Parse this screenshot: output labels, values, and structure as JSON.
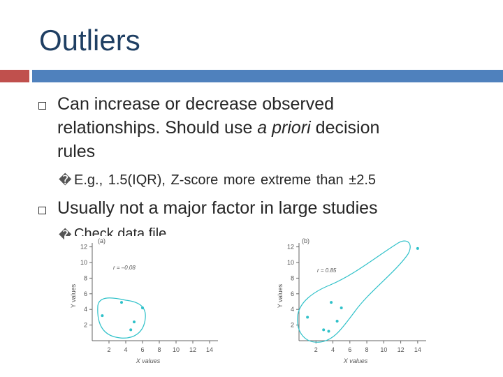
{
  "slide": {
    "title": "Outliers",
    "bullet1": {
      "line1": "Can increase or decrease observed",
      "line2_pre": "relationships. Should use ",
      "line2_italic": "a priori",
      "line2_post": " decision",
      "line3": "rules"
    },
    "sub1": {
      "marker": "�",
      "text": "E.g., 1.5(IQR), Z-score more extreme than ±2.5"
    },
    "bullet2": {
      "text": "Usually not a major factor in large studies"
    },
    "sub2": {
      "marker": "�",
      "text": "Check data file"
    }
  },
  "colors": {
    "title": "#1f3f63",
    "accent_red": "#c0504d",
    "accent_blue": "#4f81bd",
    "points": "#2fc1c9"
  },
  "chart_data": [
    {
      "type": "scatter",
      "panel_label": "(a)",
      "annotation": "r = –0.08",
      "xlabel": "X values",
      "ylabel": "Y values",
      "xticks": [
        "2",
        "4",
        "6",
        "8",
        "10",
        "12",
        "14"
      ],
      "yticks": [
        "2",
        "4",
        "6",
        "8",
        "10",
        "12"
      ],
      "xlim": [
        0,
        15
      ],
      "ylim": [
        0,
        12.5
      ],
      "points": [
        [
          1.2,
          3.2
        ],
        [
          3.5,
          4.9
        ],
        [
          4.6,
          1.4
        ],
        [
          5.0,
          2.4
        ],
        [
          6.0,
          4.2
        ]
      ]
    },
    {
      "type": "scatter",
      "panel_label": "(b)",
      "annotation": "r = 0.85",
      "xlabel": "X values",
      "ylabel": "Y values",
      "xticks": [
        "2",
        "4",
        "6",
        "8",
        "10",
        "12",
        "14"
      ],
      "yticks": [
        "2",
        "4",
        "6",
        "8",
        "10",
        "12"
      ],
      "xlim": [
        0,
        15
      ],
      "ylim": [
        0,
        12.5
      ],
      "points": [
        [
          1.0,
          3.0
        ],
        [
          2.9,
          1.4
        ],
        [
          3.5,
          1.2
        ],
        [
          3.8,
          4.9
        ],
        [
          4.5,
          2.5
        ],
        [
          5.0,
          4.2
        ],
        [
          14.0,
          11.8
        ]
      ]
    }
  ]
}
